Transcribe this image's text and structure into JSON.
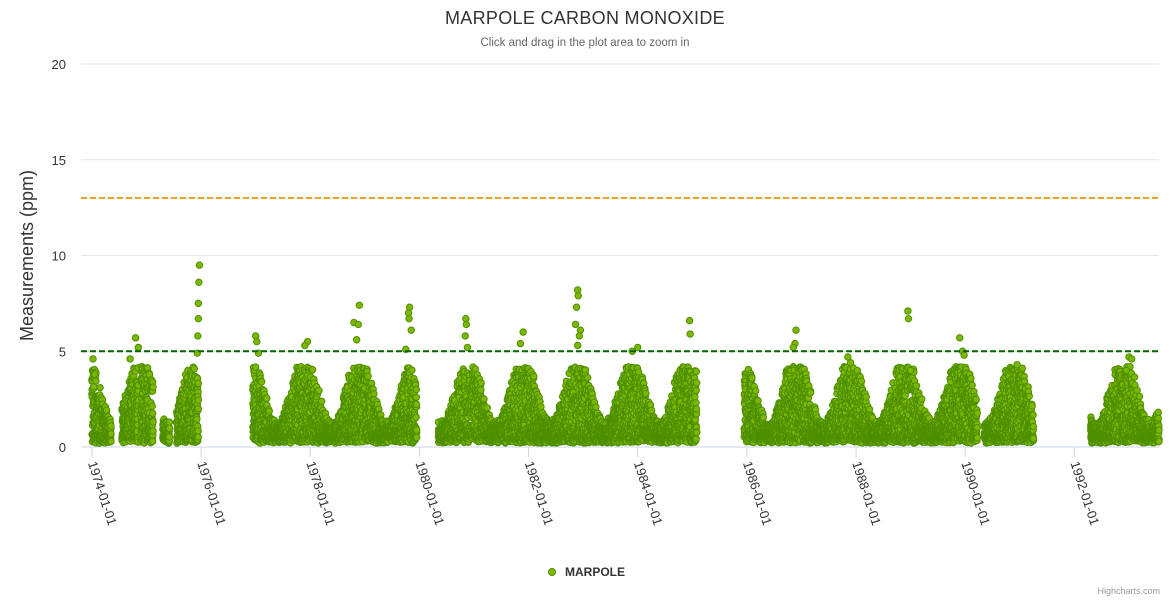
{
  "chart_data": {
    "type": "scatter",
    "title": "MARPOLE CARBON MONOXIDE",
    "subtitle": "Click and drag in the plot area to zoom in",
    "ylabel": "Measurements (ppm)",
    "xlabel": "",
    "ylim": [
      0,
      20
    ],
    "xlim": [
      1973.8,
      1993.55
    ],
    "y_ticks": [
      "0",
      "5",
      "10",
      "15",
      "20"
    ],
    "x_ticks": [
      "1974-01-01",
      "1976-01-01",
      "1978-01-01",
      "1980-01-01",
      "1982-01-01",
      "1984-01-01",
      "1986-01-01",
      "1988-01-01",
      "1990-01-01",
      "1992-01-01"
    ],
    "grid": true,
    "legend": "bottom-center",
    "reference_lines": [
      {
        "value": 13,
        "color": "#e8a317",
        "style": "dashed"
      },
      {
        "value": 5,
        "color": "#006400",
        "style": "dashed"
      }
    ],
    "series": [
      {
        "name": "MARPOLE",
        "color": "#7cb800",
        "stroke": "#4e8f00",
        "data_periods": [
          {
            "start": 1974.0,
            "end": 1974.35
          },
          {
            "start": 1974.55,
            "end": 1974.85
          },
          {
            "start": 1974.9,
            "end": 1975.12
          },
          {
            "start": 1975.3,
            "end": 1975.42
          },
          {
            "start": 1975.55,
            "end": 1975.95
          },
          {
            "start": 1976.95,
            "end": 1979.95
          },
          {
            "start": 1980.35,
            "end": 1985.08
          },
          {
            "start": 1985.95,
            "end": 1990.22
          },
          {
            "start": 1990.35,
            "end": 1991.25
          },
          {
            "start": 1992.3,
            "end": 1993.55
          }
        ],
        "peaks": [
          {
            "x": 1974.02,
            "y": 4.6
          },
          {
            "x": 1974.05,
            "y": 3.8
          },
          {
            "x": 1974.8,
            "y": 5.7
          },
          {
            "x": 1974.85,
            "y": 5.2
          },
          {
            "x": 1974.7,
            "y": 4.6
          },
          {
            "x": 1975.97,
            "y": 9.5
          },
          {
            "x": 1975.96,
            "y": 8.6
          },
          {
            "x": 1975.95,
            "y": 7.5
          },
          {
            "x": 1975.95,
            "y": 6.7
          },
          {
            "x": 1975.94,
            "y": 5.8
          },
          {
            "x": 1975.93,
            "y": 4.9
          },
          {
            "x": 1977.0,
            "y": 5.8
          },
          {
            "x": 1977.02,
            "y": 5.5
          },
          {
            "x": 1977.05,
            "y": 4.9
          },
          {
            "x": 1977.95,
            "y": 5.5
          },
          {
            "x": 1977.9,
            "y": 5.3
          },
          {
            "x": 1978.9,
            "y": 7.4
          },
          {
            "x": 1978.8,
            "y": 6.5
          },
          {
            "x": 1978.88,
            "y": 6.4
          },
          {
            "x": 1978.85,
            "y": 5.6
          },
          {
            "x": 1979.82,
            "y": 7.3
          },
          {
            "x": 1979.8,
            "y": 7.0
          },
          {
            "x": 1979.81,
            "y": 6.7
          },
          {
            "x": 1979.85,
            "y": 6.1
          },
          {
            "x": 1979.75,
            "y": 5.1
          },
          {
            "x": 1980.85,
            "y": 6.7
          },
          {
            "x": 1980.86,
            "y": 6.4
          },
          {
            "x": 1980.84,
            "y": 5.8
          },
          {
            "x": 1980.88,
            "y": 5.2
          },
          {
            "x": 1981.9,
            "y": 6.0
          },
          {
            "x": 1981.85,
            "y": 5.4
          },
          {
            "x": 1982.9,
            "y": 8.2
          },
          {
            "x": 1982.91,
            "y": 7.9
          },
          {
            "x": 1982.88,
            "y": 7.3
          },
          {
            "x": 1982.86,
            "y": 6.4
          },
          {
            "x": 1982.95,
            "y": 6.1
          },
          {
            "x": 1982.93,
            "y": 5.8
          },
          {
            "x": 1982.9,
            "y": 5.3
          },
          {
            "x": 1983.9,
            "y": 5.0
          },
          {
            "x": 1984.0,
            "y": 5.2
          },
          {
            "x": 1984.95,
            "y": 6.6
          },
          {
            "x": 1984.96,
            "y": 5.9
          },
          {
            "x": 1986.9,
            "y": 6.1
          },
          {
            "x": 1986.88,
            "y": 5.4
          },
          {
            "x": 1986.85,
            "y": 5.2
          },
          {
            "x": 1987.85,
            "y": 4.7
          },
          {
            "x": 1987.9,
            "y": 4.4
          },
          {
            "x": 1988.95,
            "y": 7.1
          },
          {
            "x": 1988.96,
            "y": 6.7
          },
          {
            "x": 1989.0,
            "y": 4.0
          },
          {
            "x": 1989.9,
            "y": 5.7
          },
          {
            "x": 1989.95,
            "y": 5.0
          },
          {
            "x": 1989.98,
            "y": 4.8
          },
          {
            "x": 1990.95,
            "y": 4.3
          },
          {
            "x": 1993.0,
            "y": 4.7
          },
          {
            "x": 1993.05,
            "y": 4.6
          },
          {
            "x": 1992.95,
            "y": 4.0
          }
        ]
      }
    ]
  },
  "credits": "Highcharts.com"
}
